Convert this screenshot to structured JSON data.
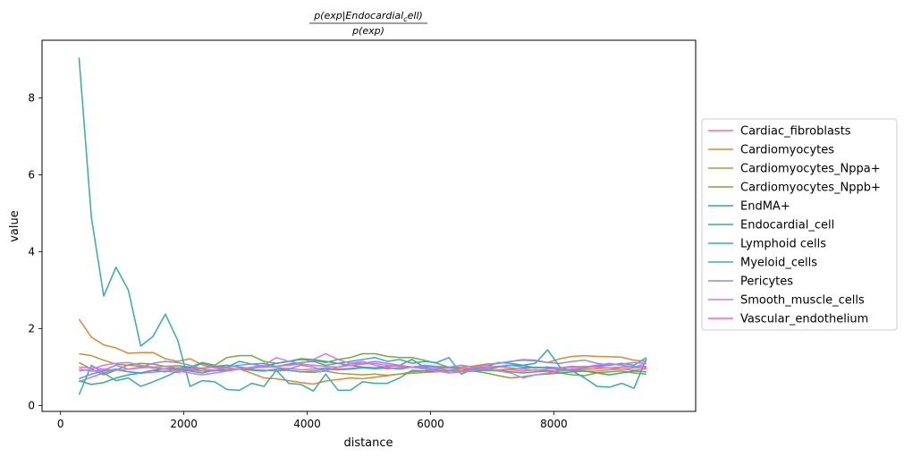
{
  "chart_data": {
    "type": "line",
    "title": "p(exp|Endocardial_cell) / p(exp)",
    "title_numerator": "p(exp|Endocardial",
    "title_numerator_sub": "c",
    "title_numerator_end": "ell)",
    "title_denominator": "p(exp)",
    "xlabel": "distance",
    "ylabel": "value",
    "xlim": [
      -300,
      10300
    ],
    "ylim": [
      -0.15,
      9.5
    ],
    "xticks": [
      0,
      2000,
      4000,
      6000,
      8000
    ],
    "yticks": [
      0,
      2,
      4,
      6,
      8
    ],
    "grid": false,
    "legend_position": "right, outside plot",
    "x": [
      300,
      500,
      700,
      900,
      1100,
      1300,
      1500,
      1700,
      1900,
      2100,
      2300,
      2500,
      2700,
      2900,
      3100,
      3300,
      3500,
      3700,
      3900,
      4100,
      4300,
      4500,
      4700,
      4900,
      5100,
      5300,
      5500,
      5700,
      5900,
      6100,
      6300,
      6500,
      6700,
      6900,
      7100,
      7300,
      7500,
      7700,
      7900,
      8100,
      8300,
      8500,
      8700,
      8900,
      9100,
      9300,
      9500
    ],
    "series": [
      {
        "name": "Cardiac_fibroblasts",
        "color": "#f77189",
        "values": [
          0.62,
          0.74,
          0.85,
          0.93,
          0.88,
          0.84,
          0.87,
          0.9,
          0.86,
          0.93,
          0.95,
          0.92,
          0.94,
          0.95,
          0.93,
          0.9,
          0.95,
          0.97,
          0.93,
          0.95,
          0.98,
          0.95,
          0.97,
          1.0,
          0.98,
          0.96,
          0.99,
          1.0,
          0.97,
          0.96,
          0.98,
          0.95,
          0.94,
          0.97,
          0.92,
          0.93,
          0.9,
          0.93,
          0.91,
          0.9,
          0.92,
          0.89,
          0.9,
          0.93,
          0.95,
          0.92,
          0.96
        ]
      },
      {
        "name": "Cardiomyocytes",
        "color": "#dc8932",
        "values": [
          2.25,
          1.78,
          1.58,
          1.5,
          1.36,
          1.38,
          1.38,
          1.22,
          1.15,
          1.22,
          1.06,
          0.98,
          0.93,
          0.96,
          0.84,
          0.72,
          0.7,
          0.65,
          0.6,
          0.56,
          0.64,
          0.68,
          0.72,
          0.7,
          0.74,
          0.78,
          0.82,
          0.88,
          0.9,
          0.96,
          0.98,
          1.0,
          1.03,
          1.08,
          1.1,
          1.15,
          1.18,
          1.16,
          1.12,
          1.22,
          1.28,
          1.3,
          1.28,
          1.27,
          1.26,
          1.18,
          1.15
        ]
      },
      {
        "name": "Cardiomyocytes_Nppa+",
        "color": "#ae9d31",
        "values": [
          1.35,
          1.3,
          1.18,
          1.08,
          1.05,
          1.02,
          0.98,
          0.95,
          0.94,
          0.93,
          0.9,
          0.91,
          0.92,
          0.96,
          0.93,
          0.92,
          0.9,
          0.92,
          0.88,
          0.86,
          0.9,
          0.84,
          0.82,
          0.8,
          0.82,
          0.79,
          0.82,
          0.84,
          0.86,
          0.88,
          0.9,
          0.9,
          0.93,
          0.95,
          0.93,
          0.95,
          0.97,
          1.0,
          0.98,
          0.95,
          0.93,
          0.94,
          0.96,
          0.98,
          1.0,
          1.02,
          0.98
        ]
      },
      {
        "name": "Cardiomyocytes_Nppb+",
        "color": "#77ab31",
        "values": [
          1.12,
          0.95,
          0.8,
          0.92,
          1.06,
          1.1,
          1.08,
          1.02,
          1.04,
          1.0,
          1.12,
          1.05,
          1.25,
          1.3,
          1.3,
          1.15,
          1.1,
          1.15,
          1.2,
          1.18,
          1.12,
          1.2,
          1.25,
          1.35,
          1.35,
          1.28,
          1.25,
          1.25,
          1.18,
          1.1,
          1.0,
          0.95,
          0.9,
          0.85,
          0.78,
          0.72,
          0.75,
          0.8,
          0.82,
          0.85,
          0.8,
          0.78,
          0.85,
          0.88,
          0.9,
          0.85,
          0.82
        ]
      },
      {
        "name": "EndMA+",
        "color": "#33b07a",
        "values": [
          0.65,
          0.55,
          0.6,
          0.72,
          0.8,
          0.85,
          0.92,
          0.96,
          0.98,
          1.0,
          0.97,
          1.02,
          1.05,
          1.0,
          0.96,
          1.02,
          1.1,
          1.15,
          1.22,
          1.2,
          1.15,
          1.1,
          1.05,
          1.0,
          0.98,
          1.02,
          1.05,
          1.2,
          1.0,
          0.92,
          0.85,
          0.88,
          0.9,
          0.92,
          0.9,
          0.88,
          0.85,
          0.88,
          0.9,
          0.85,
          0.88,
          0.9,
          0.85,
          0.8,
          0.85,
          0.9,
          0.88
        ]
      },
      {
        "name": "Endocardial_cell",
        "color": "#36ada4",
        "values": [
          9.05,
          4.9,
          2.85,
          3.6,
          3.0,
          1.55,
          1.8,
          2.38,
          1.7,
          0.5,
          0.65,
          0.62,
          0.42,
          0.4,
          0.58,
          0.5,
          0.92,
          0.58,
          0.55,
          0.38,
          0.82,
          0.4,
          0.4,
          0.62,
          0.58,
          0.58,
          0.72,
          0.92,
          0.9,
          0.9,
          0.9,
          0.95,
          0.9,
          0.95,
          1.0,
          1.05,
          1.05,
          1.1,
          1.45,
          1.0,
          0.9,
          0.72,
          0.5,
          0.48,
          0.58,
          0.45,
          1.22
        ]
      },
      {
        "name": "Lymphoid cells",
        "color": "#38a9c5",
        "values": [
          0.28,
          1.05,
          0.85,
          0.65,
          0.72,
          0.5,
          0.62,
          0.75,
          0.9,
          0.98,
          1.1,
          1.02,
          1.0,
          1.15,
          1.08,
          1.1,
          1.02,
          1.08,
          1.12,
          1.15,
          1.05,
          1.1,
          1.15,
          1.2,
          1.25,
          1.15,
          1.2,
          1.1,
          1.15,
          1.12,
          1.25,
          0.82,
          0.95,
          1.0,
          1.12,
          1.1,
          1.05,
          0.98,
          1.0,
          0.92,
          0.95,
          0.98,
          1.02,
          1.05,
          1.1,
          1.05,
          1.25
        ]
      },
      {
        "name": "Myeloid_cells",
        "color": "#3ba3ec",
        "values": [
          0.7,
          0.82,
          0.9,
          0.95,
          0.88,
          0.85,
          0.92,
          0.88,
          0.95,
          0.9,
          0.85,
          0.92,
          0.9,
          0.95,
          0.92,
          0.9,
          0.95,
          0.92,
          0.88,
          0.9,
          0.95,
          0.93,
          0.95,
          0.98,
          0.96,
          0.98,
          0.95,
          1.0,
          1.02,
          1.0,
          0.98,
          0.96,
          0.98,
          1.0,
          1.02,
          1.05,
          1.0,
          0.98,
          1.0,
          0.98,
          1.02,
          1.0,
          1.05,
          1.08,
          1.05,
          1.0,
          1.02
        ]
      },
      {
        "name": "Pericytes",
        "color": "#8e8cf3",
        "values": [
          0.95,
          0.9,
          0.92,
          1.05,
          0.95,
          1.0,
          1.1,
          1.15,
          1.12,
          1.05,
          0.95,
          0.9,
          1.0,
          1.05,
          1.08,
          1.02,
          1.0,
          0.95,
          1.05,
          1.0,
          0.9,
          1.0,
          1.1,
          1.1,
          1.15,
          1.1,
          1.05,
          1.0,
          1.05,
          1.02,
          1.0,
          1.05,
          1.0,
          1.05,
          1.1,
          1.15,
          1.2,
          1.18,
          1.12,
          1.1,
          1.15,
          1.18,
          1.1,
          1.05,
          1.08,
          1.12,
          1.1
        ]
      },
      {
        "name": "Smooth_muscle_cells",
        "color": "#cc7af4",
        "values": [
          0.9,
          0.95,
          1.05,
          1.1,
          1.12,
          1.05,
          1.0,
          0.95,
          0.9,
          0.85,
          0.8,
          0.85,
          0.9,
          0.95,
          1.0,
          1.05,
          1.25,
          1.15,
          1.1,
          1.2,
          1.35,
          1.2,
          1.1,
          1.15,
          1.05,
          1.0,
          1.05,
          1.0,
          0.95,
          0.9,
          0.85,
          0.88,
          0.92,
          0.95,
          0.9,
          0.85,
          0.72,
          0.8,
          0.85,
          0.9,
          0.95,
          1.0,
          1.05,
          1.1,
          1.05,
          1.0,
          1.1
        ]
      },
      {
        "name": "Vascular_endothelium",
        "color": "#f565cc",
        "values": [
          1.0,
          0.98,
          0.95,
          0.92,
          0.95,
          0.98,
          1.0,
          1.02,
          0.98,
          0.95,
          0.98,
          1.0,
          0.98,
          0.95,
          0.98,
          1.0,
          1.02,
          1.05,
          1.08,
          1.05,
          1.02,
          1.0,
          1.05,
          1.08,
          1.1,
          1.05,
          1.02,
          1.0,
          0.98,
          0.95,
          0.92,
          0.95,
          0.98,
          1.0,
          1.02,
          0.98,
          0.95,
          0.92,
          0.95,
          0.98,
          1.0,
          1.02,
          1.0,
          0.98,
          0.95,
          0.98,
          1.0
        ]
      }
    ]
  }
}
